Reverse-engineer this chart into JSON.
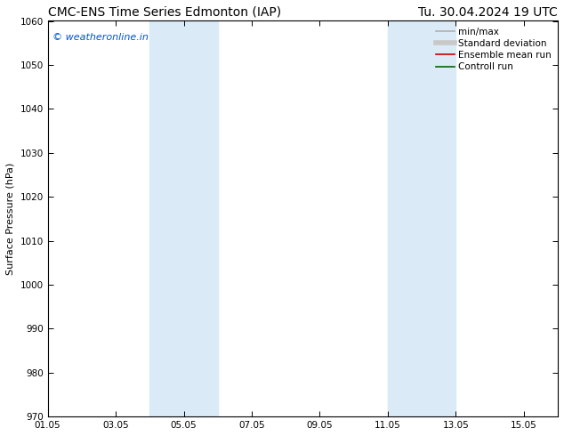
{
  "title_left": "CMC-ENS Time Series Edmonton (IAP)",
  "title_right": "Tu. 30.04.2024 19 UTC",
  "ylabel": "Surface Pressure (hPa)",
  "ylim": [
    970,
    1060
  ],
  "yticks": [
    970,
    980,
    990,
    1000,
    1010,
    1020,
    1030,
    1040,
    1050,
    1060
  ],
  "xlim": [
    0,
    15
  ],
  "xtick_labels": [
    "01.05",
    "03.05",
    "05.05",
    "07.05",
    "09.05",
    "11.05",
    "13.05",
    "15.05"
  ],
  "xtick_positions": [
    0,
    2,
    4,
    6,
    8,
    10,
    12,
    14
  ],
  "shaded_bands": [
    {
      "xstart": 3.0,
      "xend": 5.0,
      "color": "#daeaf7"
    },
    {
      "xstart": 10.0,
      "xend": 12.0,
      "color": "#daeaf7"
    }
  ],
  "watermark_text": "© weatheronline.in",
  "watermark_color": "#0055cc",
  "legend_items": [
    {
      "label": "min/max",
      "color": "#b0b0b0",
      "lw": 1.2,
      "type": "line"
    },
    {
      "label": "Standard deviation",
      "color": "#c8c8c8",
      "lw": 4,
      "type": "line"
    },
    {
      "label": "Ensemble mean run",
      "color": "#cc0000",
      "lw": 1.2,
      "type": "line"
    },
    {
      "label": "Controll run",
      "color": "#006600",
      "lw": 1.2,
      "type": "line"
    }
  ],
  "bg_color": "#ffffff",
  "title_fontsize": 10,
  "tick_fontsize": 7.5,
  "ylabel_fontsize": 8,
  "legend_fontsize": 7.5,
  "watermark_fontsize": 8
}
